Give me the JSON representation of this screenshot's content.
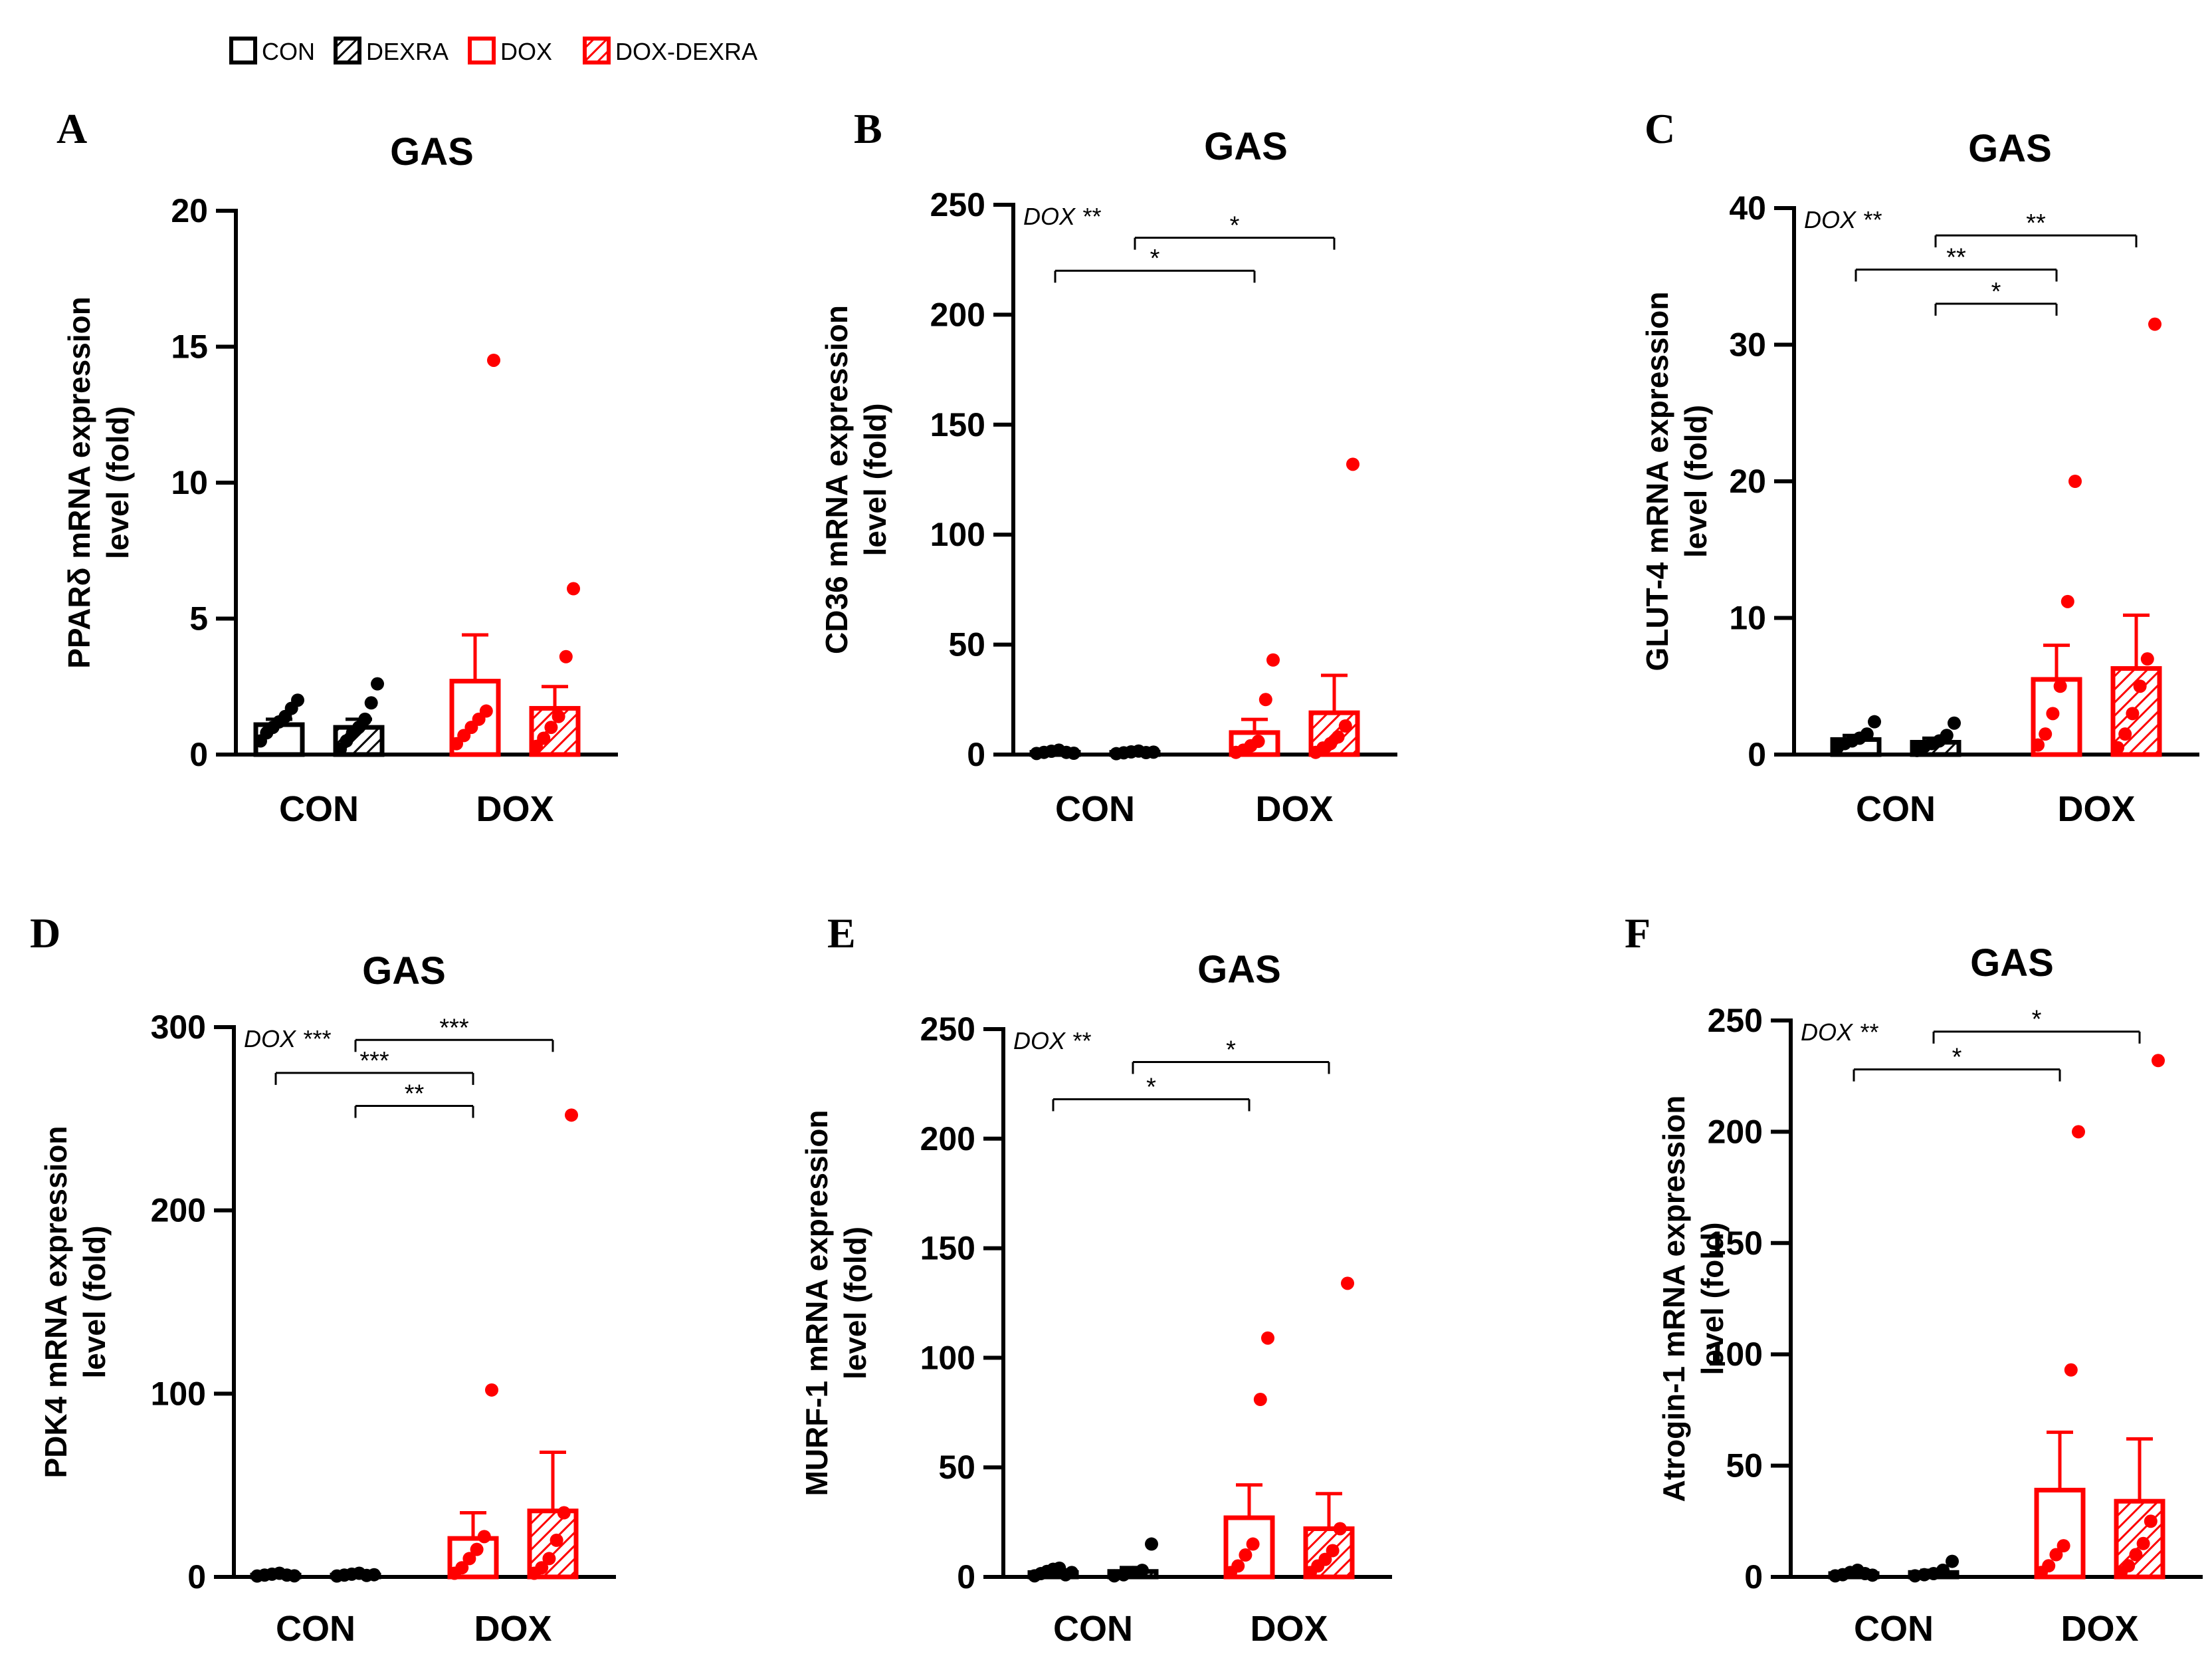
{
  "legend": [
    {
      "label": "CON",
      "color": "#000000",
      "hatched": false
    },
    {
      "label": "DEXRA",
      "color": "#000000",
      "hatched": true
    },
    {
      "label": "DOX",
      "color": "#ff0000",
      "hatched": false
    },
    {
      "label": "DOX-DEXRA",
      "color": "#ff0000",
      "hatched": true
    }
  ],
  "colors": {
    "control": "#000000",
    "dox": "#ff0000"
  },
  "chart_data": [
    {
      "panel": "A",
      "type": "bar",
      "title": "GAS",
      "ylabel_lines": [
        "PPARδ mRNA expression",
        "level (fold)"
      ],
      "ylim": [
        0,
        20
      ],
      "yticks": [
        0,
        5,
        10,
        15,
        20
      ],
      "categories": [
        "CON",
        "DOX"
      ],
      "series": [
        {
          "name": "CON",
          "category": 0,
          "mean": 1.1,
          "sem": 0.2,
          "points": [
            0.5,
            0.8,
            1.0,
            1.2,
            1.4,
            1.7,
            2.0
          ]
        },
        {
          "name": "DEXRA",
          "category": 0,
          "mean": 1.0,
          "sem": 0.3,
          "points": [
            0.2,
            0.5,
            0.8,
            1.0,
            1.3,
            1.9,
            2.6
          ]
        },
        {
          "name": "DOX",
          "category": 1,
          "mean": 2.7,
          "sem": 1.7,
          "points": [
            0.4,
            0.7,
            1.0,
            1.3,
            1.6,
            14.5
          ]
        },
        {
          "name": "DOX-DEXRA",
          "category": 1,
          "mean": 1.7,
          "sem": 0.8,
          "points": [
            0.3,
            0.6,
            1.0,
            1.4,
            3.6,
            6.1
          ]
        }
      ],
      "dox_note": "",
      "comparisons": []
    },
    {
      "panel": "B",
      "type": "bar",
      "title": "GAS",
      "ylabel_lines": [
        "CD36 mRNA expression",
        "level (fold)"
      ],
      "ylim": [
        0,
        250
      ],
      "yticks": [
        0,
        50,
        100,
        150,
        200,
        250
      ],
      "categories": [
        "CON",
        "DOX"
      ],
      "series": [
        {
          "name": "CON",
          "category": 0,
          "mean": 1.0,
          "sem": 0.3,
          "points": [
            0.5,
            1.0,
            1.5,
            2.0,
            1.0,
            0.6
          ]
        },
        {
          "name": "DEXRA",
          "category": 0,
          "mean": 1.0,
          "sem": 0.3,
          "points": [
            0.4,
            0.8,
            1.2,
            1.6,
            0.9,
            1.1
          ]
        },
        {
          "name": "DOX",
          "category": 1,
          "mean": 10,
          "sem": 6,
          "points": [
            1,
            2,
            4,
            6,
            25,
            43
          ]
        },
        {
          "name": "DOX-DEXRA",
          "category": 1,
          "mean": 19,
          "sem": 17,
          "points": [
            1,
            3,
            5,
            8,
            13,
            132
          ]
        }
      ],
      "dox_note": "DOX **",
      "comparisons": [
        {
          "from": 0,
          "to": 2,
          "y": 220,
          "label": "*"
        },
        {
          "from": 1,
          "to": 3,
          "y": 235,
          "label": "*"
        }
      ]
    },
    {
      "panel": "C",
      "type": "bar",
      "title": "GAS",
      "ylabel_lines": [
        "GLUT-4 mRNA expression",
        "level (fold)"
      ],
      "ylim": [
        0,
        40
      ],
      "yticks": [
        0,
        10,
        20,
        30,
        40
      ],
      "categories": [
        "CON",
        "DOX"
      ],
      "series": [
        {
          "name": "CON",
          "category": 0,
          "mean": 1.1,
          "sem": 0.3,
          "points": [
            0.5,
            0.8,
            1.0,
            1.2,
            1.5,
            2.4
          ]
        },
        {
          "name": "DEXRA",
          "category": 0,
          "mean": 0.9,
          "sem": 0.3,
          "points": [
            0.3,
            0.6,
            0.8,
            1.0,
            1.4,
            2.3
          ]
        },
        {
          "name": "DOX",
          "category": 1,
          "mean": 5.5,
          "sem": 2.5,
          "points": [
            0.7,
            1.5,
            3.0,
            5.0,
            11.2,
            20.0
          ]
        },
        {
          "name": "DOX-DEXRA",
          "category": 1,
          "mean": 6.3,
          "sem": 3.9,
          "points": [
            0.5,
            1.5,
            3.0,
            5.0,
            7.0,
            31.5
          ]
        }
      ],
      "dox_note": "DOX **",
      "comparisons": [
        {
          "from": 1,
          "to": 3,
          "y": 38,
          "label": "**"
        },
        {
          "from": 0,
          "to": 2,
          "y": 35.5,
          "label": "**"
        },
        {
          "from": 1,
          "to": 2,
          "y": 33,
          "label": "*"
        }
      ]
    },
    {
      "panel": "D",
      "type": "bar",
      "title": "GAS",
      "ylabel_lines": [
        "PDK4 mRNA expression",
        "level (fold)"
      ],
      "ylim": [
        0,
        300
      ],
      "yticks": [
        0,
        100,
        200,
        300
      ],
      "categories": [
        "CON",
        "DOX"
      ],
      "series": [
        {
          "name": "CON",
          "category": 0,
          "mean": 1.0,
          "sem": 0.3,
          "points": [
            0.5,
            1.0,
            1.5,
            2.0,
            1.0,
            0.6
          ]
        },
        {
          "name": "DEXRA",
          "category": 0,
          "mean": 1.0,
          "sem": 0.3,
          "points": [
            0.5,
            1.0,
            1.5,
            2.0,
            0.8,
            1.2
          ]
        },
        {
          "name": "DOX",
          "category": 1,
          "mean": 21,
          "sem": 14,
          "points": [
            2,
            5,
            10,
            15,
            22,
            102
          ]
        },
        {
          "name": "DOX-DEXRA",
          "category": 1,
          "mean": 36,
          "sem": 32,
          "points": [
            2,
            5,
            10,
            20,
            35,
            252
          ]
        }
      ],
      "dox_note": "DOX ***",
      "comparisons": [
        {
          "from": 1,
          "to": 3,
          "y": 293,
          "label": "***"
        },
        {
          "from": 0,
          "to": 2,
          "y": 275,
          "label": "***"
        },
        {
          "from": 1,
          "to": 2,
          "y": 257,
          "label": "**"
        }
      ]
    },
    {
      "panel": "E",
      "type": "bar",
      "title": "GAS",
      "ylabel_lines": [
        "MURF-1 mRNA expression",
        "level (fold)"
      ],
      "ylim": [
        0,
        250
      ],
      "yticks": [
        0,
        50,
        100,
        150,
        200,
        250
      ],
      "categories": [
        "CON",
        "DOX"
      ],
      "series": [
        {
          "name": "CON",
          "category": 0,
          "mean": 2.0,
          "sem": 0.5,
          "points": [
            0.5,
            1.5,
            2.5,
            3.5,
            4.0,
            1.0,
            2.0
          ]
        },
        {
          "name": "DEXRA",
          "category": 0,
          "mean": 2.5,
          "sem": 1.8,
          "points": [
            0.5,
            1.0,
            2.0,
            3.0,
            15.0
          ]
        },
        {
          "name": "DOX",
          "category": 1,
          "mean": 27,
          "sem": 15,
          "points": [
            2,
            5,
            10,
            15,
            81,
            109
          ]
        },
        {
          "name": "DOX-DEXRA",
          "category": 1,
          "mean": 22,
          "sem": 16,
          "points": [
            2,
            5,
            8,
            12,
            22,
            134
          ]
        }
      ],
      "dox_note": "DOX **",
      "comparisons": [
        {
          "from": 0,
          "to": 2,
          "y": 218,
          "label": "*"
        },
        {
          "from": 1,
          "to": 3,
          "y": 235,
          "label": "*"
        }
      ]
    },
    {
      "panel": "F",
      "type": "bar",
      "title": "GAS",
      "ylabel_lines": [
        "Atrogin-1 mRNA expression",
        "level (fold)"
      ],
      "ylim": [
        0,
        250
      ],
      "yticks": [
        0,
        50,
        100,
        150,
        200,
        250
      ],
      "categories": [
        "CON",
        "DOX"
      ],
      "series": [
        {
          "name": "CON",
          "category": 0,
          "mean": 1.5,
          "sem": 0.4,
          "points": [
            0.5,
            1.0,
            2.0,
            3.0,
            1.5,
            0.8
          ]
        },
        {
          "name": "DEXRA",
          "category": 0,
          "mean": 2.0,
          "sem": 1.0,
          "points": [
            0.5,
            1.0,
            1.5,
            3.0,
            7.0
          ]
        },
        {
          "name": "DOX",
          "category": 1,
          "mean": 39,
          "sem": 26,
          "points": [
            2,
            5,
            10,
            14,
            93,
            200
          ]
        },
        {
          "name": "DOX-DEXRA",
          "category": 1,
          "mean": 34,
          "sem": 28,
          "points": [
            2,
            5,
            10,
            15,
            25,
            232
          ]
        }
      ],
      "dox_note": "DOX **",
      "comparisons": [
        {
          "from": 0,
          "to": 2,
          "y": 228,
          "label": "*"
        },
        {
          "from": 1,
          "to": 3,
          "y": 245,
          "label": "*"
        }
      ]
    }
  ]
}
